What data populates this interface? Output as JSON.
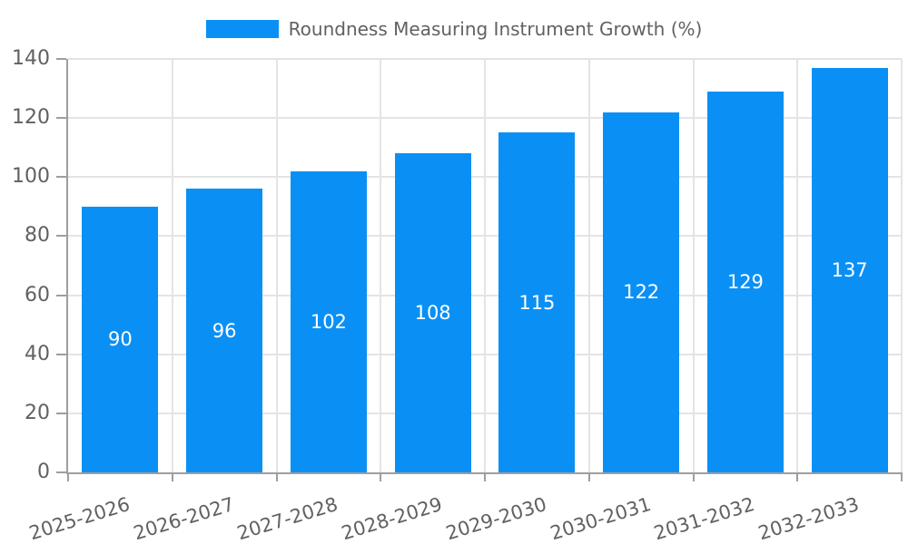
{
  "chart_data": {
    "type": "bar",
    "series_name": "Roundness Measuring Instrument Growth (%)",
    "categories": [
      "2025-2026",
      "2026-2027",
      "2027-2028",
      "2028-2029",
      "2029-2030",
      "2030-2031",
      "2031-2032",
      "2032-2033"
    ],
    "values": [
      90,
      96,
      102,
      108,
      115,
      122,
      129,
      137
    ],
    "title": "",
    "xlabel": "",
    "ylabel": "",
    "ylim": [
      0,
      140
    ],
    "yticks": [
      0,
      20,
      40,
      60,
      80,
      100,
      120,
      140
    ],
    "grid": true,
    "legend_position": "top-center",
    "colors": {
      "bar": "#0a90f5",
      "value_label": "#ffffff",
      "axis": "#9e9e9e",
      "grid": "#e4e4e4",
      "tick_text": "#616161",
      "legend_text": "#616161",
      "background": "#ffffff"
    }
  }
}
